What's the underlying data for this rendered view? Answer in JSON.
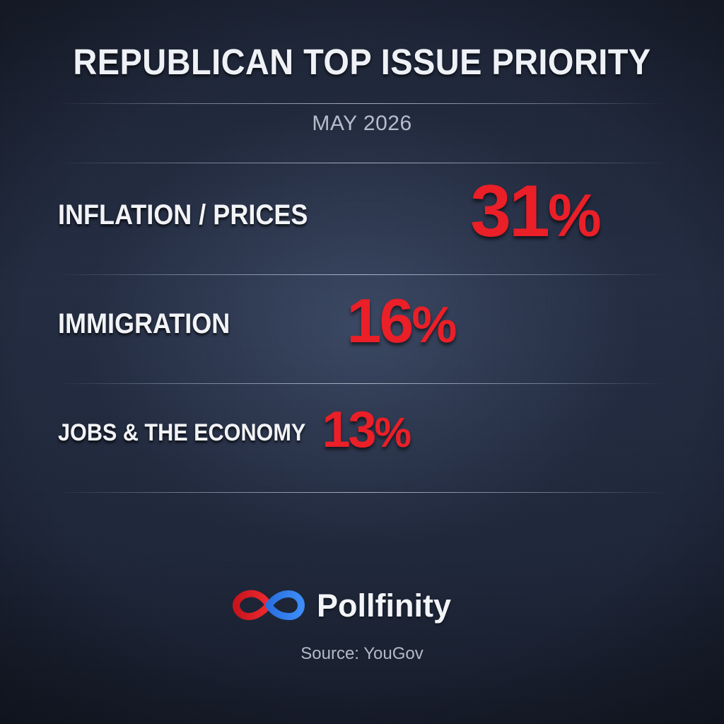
{
  "title": "REPUBLICAN TOP ISSUE PRIORITY",
  "subtitle": "MAY 2026",
  "brand": {
    "name": "Pollfinity",
    "icon": "infinity-logo-icon",
    "icon_colors": [
      "#e3242b",
      "#2f7ff0"
    ]
  },
  "source": "Source: YouGov",
  "colors": {
    "accent": "#e8202a",
    "background": "#1f273a",
    "text": "#f2f3f6"
  },
  "chart_data": {
    "type": "bar",
    "orientation": "horizontal",
    "title": "REPUBLICAN TOP ISSUE PRIORITY",
    "subtitle": "MAY 2026",
    "categories": [
      "INFLATION / PRICES",
      "IMMIGRATION",
      "JOBS & THE ECONOMY"
    ],
    "values": [
      31,
      16,
      13
    ],
    "value_labels": [
      "31%",
      "16%",
      "13%"
    ],
    "unit": "%",
    "xlabel": "",
    "ylabel": "",
    "grid": false,
    "legend": "none"
  }
}
